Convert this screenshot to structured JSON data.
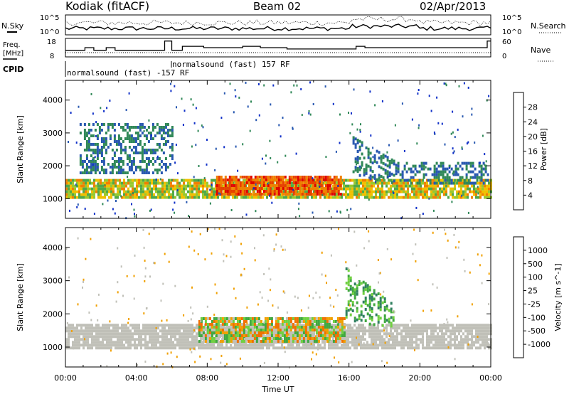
{
  "header": {
    "title": "Kodiak (fitACF)",
    "beam": "Beam 02",
    "date": "02/Apr/2013"
  },
  "top_panels": {
    "nsky_label": "N.Sky",
    "nsky_ticks": [
      "10^5",
      "10^0"
    ],
    "nsearch_label": "N.Search",
    "nsearch_ticks": [
      "10^5",
      "10^0"
    ],
    "freq_label_1": "Freq.",
    "freq_label_2": "[MHz]",
    "freq_ticks": [
      "18",
      "8"
    ],
    "nave_label": "Nave",
    "nave_ticks": [
      "60",
      "0"
    ],
    "cpid_label": "CPID",
    "cpid_mode_1": "normalsound (fast) -157 RF",
    "cpid_mode_2": "normalsound (fast) 157 RF"
  },
  "colors": {
    "power_scale": [
      "#1030c8",
      "#2858b0",
      "#308858",
      "#50a848",
      "#98c830",
      "#f0c000",
      "#f08000",
      "#e84000",
      "#e00000"
    ],
    "velocity_scale": [
      "#1030c8",
      "#2850a0",
      "#308060",
      "#40a840",
      "#70d040",
      "#c0c0b8",
      "#f0a000",
      "#f07000",
      "#e03000",
      "#e00000"
    ]
  },
  "chart_data": [
    {
      "type": "heatmap",
      "title": "Power",
      "xlabel": "Time UT",
      "ylabel": "Slant Range [km]",
      "ylim": [
        400,
        4600
      ],
      "xlim": [
        "00:00",
        "24:00"
      ],
      "y_ticks": [
        "1000",
        "2000",
        "3000",
        "4000"
      ],
      "colorbar_label": "Power [dB]",
      "colorbar_ticks": [
        "28",
        "24",
        "20",
        "16",
        "12",
        "8",
        "4"
      ],
      "colorbar_range": [
        0,
        30
      ],
      "features": [
        {
          "name": "main_band",
          "time_hours": [
            0.0,
            24.0
          ],
          "range_km": [
            1000,
            1600
          ],
          "power_db": [
            10,
            22
          ]
        },
        {
          "name": "midday_enhancement",
          "time_hours": [
            8.5,
            15.5
          ],
          "range_km": [
            1100,
            1700
          ],
          "power_db": [
            20,
            28
          ]
        },
        {
          "name": "upper_band_morning",
          "time_hours": [
            0.8,
            6.0
          ],
          "range_km": [
            1800,
            3300
          ],
          "power_db": [
            4,
            10
          ]
        },
        {
          "name": "evening_band",
          "time_hours": [
            16.2,
            23.8
          ],
          "range_km": [
            1700,
            2900
          ],
          "power_db": [
            4,
            10
          ]
        }
      ]
    },
    {
      "type": "heatmap",
      "title": "Velocity",
      "xlabel": "Time UT",
      "ylabel": "Slant Range [km]",
      "ylim": [
        400,
        4600
      ],
      "xlim": [
        "00:00",
        "24:00"
      ],
      "x_ticks": [
        "00:00",
        "04:00",
        "08:00",
        "12:00",
        "16:00",
        "20:00",
        "00:00"
      ],
      "y_ticks": [
        "1000",
        "2000",
        "3000",
        "4000"
      ],
      "colorbar_label": "Velocity [m s^-1]",
      "colorbar_ticks": [
        "1000",
        "500",
        "100",
        "25",
        "-25",
        "-100",
        "-500",
        "-1000"
      ],
      "features": [
        {
          "name": "ground_scatter_main",
          "time_hours": [
            0.0,
            24.0
          ],
          "range_km": [
            1000,
            1700
          ],
          "velocity_ms": [
            -25,
            25
          ]
        },
        {
          "name": "midday_flow",
          "time_hours": [
            7.5,
            15.8
          ],
          "range_km": [
            1200,
            1900
          ],
          "velocity_ms": [
            -500,
            100
          ]
        },
        {
          "name": "evening_arc",
          "time_hours": [
            15.8,
            18.5
          ],
          "range_km": [
            1800,
            3400
          ],
          "velocity_ms": [
            100,
            500
          ]
        }
      ]
    }
  ]
}
